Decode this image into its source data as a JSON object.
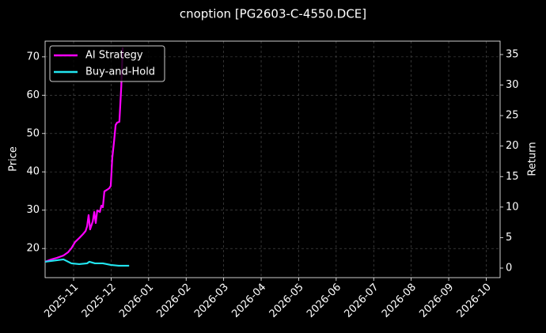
{
  "chart_data": {
    "type": "line",
    "title": "cnoption [PG2603-C-4550.DCE]",
    "y_label": "Price",
    "y2_label": "Return",
    "xlim": [
      -0.76,
      11.37
    ],
    "xticks": [
      {
        "value": 0,
        "label": "2025-11"
      },
      {
        "value": 1,
        "label": "2025-12"
      },
      {
        "value": 2,
        "label": "2026-01"
      },
      {
        "value": 3,
        "label": "2026-02"
      },
      {
        "value": 4,
        "label": "2026-03"
      },
      {
        "value": 5,
        "label": "2026-04"
      },
      {
        "value": 6,
        "label": "2026-05"
      },
      {
        "value": 7,
        "label": "2026-06"
      },
      {
        "value": 8,
        "label": "2026-07"
      },
      {
        "value": 9,
        "label": "2026-08"
      },
      {
        "value": 10,
        "label": "2026-09"
      },
      {
        "value": 11,
        "label": "2026-10"
      }
    ],
    "ylim": [
      12.4,
      74.1
    ],
    "yticks": [
      20,
      30,
      40,
      50,
      60,
      70
    ],
    "y2lim": [
      -1.56,
      37.2
    ],
    "y2ticks": [
      0,
      5,
      10,
      15,
      20,
      25,
      30,
      35
    ],
    "grid": true,
    "legend": "upper left",
    "series": [
      {
        "name": "AI Strategy",
        "color": "#ff00ff",
        "axis": "y2",
        "x": [
          -0.76,
          -0.59,
          -0.44,
          -0.27,
          -0.15,
          -0.06,
          0.04,
          0.15,
          0.25,
          0.32,
          0.36,
          0.4,
          0.44,
          0.51,
          0.55,
          0.59,
          0.63,
          0.7,
          0.74,
          0.78,
          0.82,
          0.89,
          0.95,
          0.99,
          1.03,
          1.08,
          1.12,
          1.16,
          1.22,
          1.27,
          1.31
        ],
        "values": [
          1.04,
          1.43,
          1.69,
          2.07,
          2.59,
          3.24,
          4.28,
          4.93,
          5.57,
          6.09,
          6.87,
          8.69,
          6.35,
          7.65,
          9.2,
          7.39,
          9.46,
          9.2,
          10.24,
          9.98,
          12.57,
          12.83,
          13.09,
          13.48,
          18.02,
          20.87,
          23.46,
          23.85,
          23.98,
          29.69,
          36.17
        ]
      },
      {
        "name": "Buy-and-Hold",
        "color": "#22e5f0",
        "axis": "y2",
        "x": [
          -0.76,
          -0.27,
          -0.06,
          0.15,
          0.36,
          0.42,
          0.57,
          0.78,
          0.99,
          1.2,
          1.48
        ],
        "values": [
          1.04,
          1.43,
          0.78,
          0.65,
          0.78,
          1.04,
          0.78,
          0.78,
          0.52,
          0.39,
          0.39
        ]
      }
    ]
  }
}
